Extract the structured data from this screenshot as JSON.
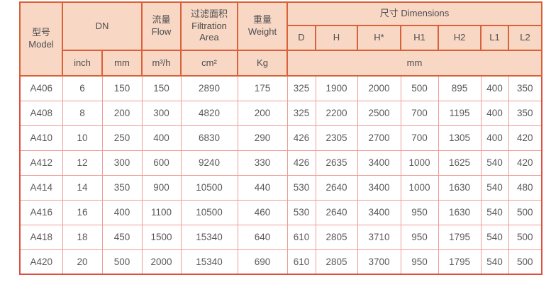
{
  "colors": {
    "header_bg": "#f8d7c5",
    "header_border": "#d96038",
    "data_grid_border": "#ee9d96",
    "outer_frame_border": "#dd4f3f",
    "text": "#595959"
  },
  "table": {
    "header": {
      "model": "型号\nModel",
      "dn": "DN",
      "flow": "流量\nFlow",
      "filtration_area": "过滤面积\nFiltration\nArea",
      "weight": "重量\nWeight",
      "dimensions": "尺寸 Dimensions",
      "dim_cols": [
        "D",
        "H",
        "H*",
        "H1",
        "H2",
        "L1",
        "L2"
      ],
      "units": {
        "inch": "inch",
        "mm": "mm",
        "flow": "m³/h",
        "area": "cm²",
        "weight": "Kg",
        "dims": "mm"
      }
    },
    "rows": [
      [
        "A406",
        "6",
        "150",
        "150",
        "2890",
        "175",
        "325",
        "1900",
        "2000",
        "500",
        "895",
        "400",
        "350"
      ],
      [
        "A408",
        "8",
        "200",
        "300",
        "4820",
        "200",
        "325",
        "2200",
        "2500",
        "700",
        "1195",
        "400",
        "350"
      ],
      [
        "A410",
        "10",
        "250",
        "400",
        "6830",
        "290",
        "426",
        "2305",
        "2700",
        "700",
        "1305",
        "400",
        "420"
      ],
      [
        "A412",
        "12",
        "300",
        "600",
        "9240",
        "330",
        "426",
        "2635",
        "3400",
        "1000",
        "1625",
        "540",
        "420"
      ],
      [
        "A414",
        "14",
        "350",
        "900",
        "10500",
        "440",
        "530",
        "2640",
        "3400",
        "1000",
        "1630",
        "540",
        "480"
      ],
      [
        "A416",
        "16",
        "400",
        "1100",
        "10500",
        "460",
        "530",
        "2640",
        "3400",
        "950",
        "1630",
        "540",
        "500"
      ],
      [
        "A418",
        "18",
        "450",
        "1500",
        "15340",
        "640",
        "610",
        "2805",
        "3710",
        "950",
        "1795",
        "540",
        "500"
      ],
      [
        "A420",
        "20",
        "500",
        "2000",
        "15340",
        "690",
        "610",
        "2805",
        "3700",
        "950",
        "1795",
        "540",
        "500"
      ]
    ]
  }
}
